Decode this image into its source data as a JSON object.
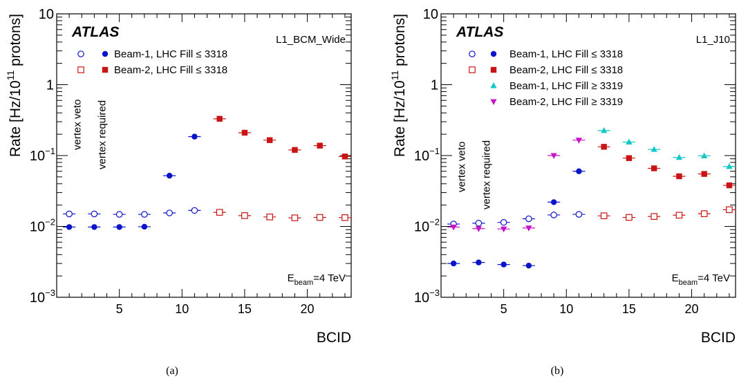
{
  "captions": [
    "(a)",
    "(b)"
  ],
  "colors": {
    "beam1_low": "#0a14c8",
    "beam2_low": "#c81414",
    "beam1_high": "#14c8c8",
    "beam2_high": "#c814c8"
  },
  "chart_data": [
    {
      "type": "scatter",
      "panel": "(a)",
      "experiment": "ATLAS",
      "trigger": "L1_BCM_Wide",
      "energy_note": {
        "prefix": "E",
        "subscript": "beam",
        "suffix": "=4 TeV"
      },
      "xlabel": "BCID",
      "ylabel": {
        "prefix": "Rate [Hz/10",
        "exponent": "11",
        "suffix": " protons]"
      },
      "xlim": [
        0,
        23.5
      ],
      "ylim": [
        0.001,
        10
      ],
      "log_y": true,
      "x_ticks": [
        5,
        10,
        15,
        20
      ],
      "y_ticks": [
        {
          "value": 0.001,
          "base": "10",
          "exp": "−3"
        },
        {
          "value": 0.01,
          "base": "10",
          "exp": "−2"
        },
        {
          "value": 0.1,
          "base": "10",
          "exp": "−1"
        },
        {
          "value": 1,
          "base": "1",
          "exp": ""
        },
        {
          "value": 10,
          "base": "10",
          "exp": ""
        }
      ],
      "annotations": [
        "vertex veto",
        "vertex required"
      ],
      "series": [
        {
          "name": "Beam-1, LHC Fill ≤ 3318",
          "variant": "vertex veto",
          "marker": "open-circle",
          "color": "#0a14c8",
          "x": [
            1,
            3,
            5,
            7,
            9,
            11
          ],
          "y": [
            0.015,
            0.015,
            0.0148,
            0.0148,
            0.0155,
            0.0168
          ]
        },
        {
          "name": "Beam-1, LHC Fill ≤ 3318",
          "variant": "vertex required",
          "marker": "filled-circle",
          "color": "#0a14c8",
          "x": [
            1,
            3,
            5,
            7,
            9,
            11
          ],
          "y": [
            0.0098,
            0.0098,
            0.0098,
            0.0099,
            0.052,
            0.185
          ]
        },
        {
          "name": "Beam-2, LHC Fill ≤ 3318",
          "variant": "vertex veto",
          "marker": "open-square",
          "color": "#c81414",
          "x": [
            13,
            15,
            17,
            19,
            21,
            23
          ],
          "y": [
            0.0158,
            0.0142,
            0.0136,
            0.0132,
            0.0134,
            0.0133
          ]
        },
        {
          "name": "Beam-2, LHC Fill ≤ 3318",
          "variant": "vertex required",
          "marker": "filled-square",
          "color": "#c81414",
          "x": [
            13,
            15,
            17,
            19,
            21,
            23
          ],
          "y": [
            0.33,
            0.21,
            0.165,
            0.12,
            0.138,
            0.097
          ]
        }
      ],
      "legend": [
        {
          "label": "Beam-1, LHC Fill ≤ 3318",
          "markers": [
            "open-circle",
            "filled-circle"
          ],
          "color": "#0a14c8"
        },
        {
          "label": "Beam-2, LHC Fill ≤ 3318",
          "markers": [
            "open-square",
            "filled-square"
          ],
          "color": "#c81414"
        }
      ]
    },
    {
      "type": "scatter",
      "panel": "(b)",
      "experiment": "ATLAS",
      "trigger": "L1_J10",
      "energy_note": {
        "prefix": "E",
        "subscript": "beam",
        "suffix": "=4 TeV"
      },
      "xlabel": "BCID",
      "ylabel": {
        "prefix": "Rate [Hz/10",
        "exponent": "11",
        "suffix": " protons]"
      },
      "xlim": [
        0,
        23.5
      ],
      "ylim": [
        0.001,
        10
      ],
      "log_y": true,
      "x_ticks": [
        5,
        10,
        15,
        20
      ],
      "y_ticks": [
        {
          "value": 0.001,
          "base": "10",
          "exp": "−3"
        },
        {
          "value": 0.01,
          "base": "10",
          "exp": "−2"
        },
        {
          "value": 0.1,
          "base": "10",
          "exp": "−1"
        },
        {
          "value": 1,
          "base": "1",
          "exp": ""
        },
        {
          "value": 10,
          "base": "10",
          "exp": ""
        }
      ],
      "annotations": [
        "vertex veto",
        "vertex required"
      ],
      "series": [
        {
          "name": "Beam-1, LHC Fill ≤ 3318",
          "variant": "vertex veto",
          "marker": "open-circle",
          "color": "#0a14c8",
          "x": [
            1,
            3,
            5,
            7,
            9,
            11
          ],
          "y": [
            0.0108,
            0.0111,
            0.0114,
            0.0128,
            0.0145,
            0.0148
          ]
        },
        {
          "name": "Beam-1, LHC Fill ≤ 3318",
          "variant": "vertex required",
          "marker": "filled-circle",
          "color": "#0a14c8",
          "x": [
            1,
            3,
            5,
            7,
            9,
            11
          ],
          "y": [
            0.003,
            0.0031,
            0.0029,
            0.0028,
            0.022,
            0.06
          ]
        },
        {
          "name": "Beam-2, LHC Fill ≤ 3318",
          "variant": "vertex veto",
          "marker": "open-square",
          "color": "#c81414",
          "x": [
            13,
            15,
            17,
            19,
            21,
            23
          ],
          "y": [
            0.0141,
            0.0134,
            0.0138,
            0.0144,
            0.0151,
            0.0172
          ]
        },
        {
          "name": "Beam-2, LHC Fill ≤ 3318",
          "variant": "vertex required",
          "marker": "filled-square",
          "color": "#c81414",
          "x": [
            13,
            15,
            17,
            19,
            21,
            23
          ],
          "y": [
            0.133,
            0.092,
            0.066,
            0.051,
            0.055,
            0.038
          ]
        },
        {
          "name": "Beam-1, LHC Fill ≥ 3319",
          "variant": "vertex required",
          "marker": "triangle-up",
          "color": "#14c8c8",
          "x": [
            13,
            15,
            17,
            19,
            21,
            23
          ],
          "y": [
            0.225,
            0.155,
            0.122,
            0.094,
            0.099,
            0.07
          ]
        },
        {
          "name": "Beam-2, LHC Fill ≥ 3319",
          "variant": "vertex required",
          "marker": "triangle-down",
          "color": "#c814c8",
          "x": [
            1,
            3,
            5,
            7,
            9,
            11
          ],
          "y": [
            0.0098,
            0.0093,
            0.0092,
            0.0095,
            0.1,
            0.165
          ]
        }
      ],
      "legend": [
        {
          "label": "Beam-1, LHC Fill ≤ 3318",
          "markers": [
            "open-circle",
            "filled-circle"
          ],
          "color": "#0a14c8"
        },
        {
          "label": "Beam-2, LHC Fill ≤ 3318",
          "markers": [
            "open-square",
            "filled-square"
          ],
          "color": "#c81414"
        },
        {
          "label": "Beam-1, LHC Fill ≥ 3319",
          "markers": [
            "",
            "triangle-up"
          ],
          "color": "#14c8c8"
        },
        {
          "label": "Beam-2, LHC Fill ≥ 3319",
          "markers": [
            "",
            "triangle-down"
          ],
          "color": "#c814c8"
        }
      ]
    }
  ]
}
